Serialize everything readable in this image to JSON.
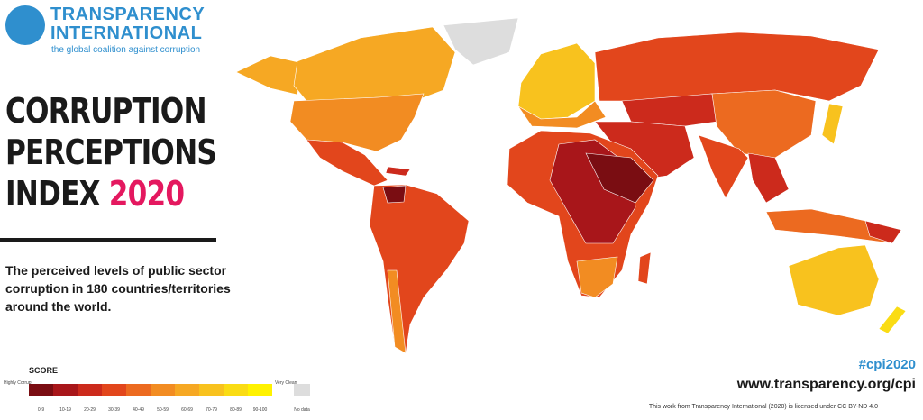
{
  "logo": {
    "line1": "TRANSPARENCY",
    "line2": "INTERNATIONAL",
    "tagline": "the global coalition against corruption"
  },
  "title": {
    "lines": [
      "CORRUPTION",
      "PERCEPTIONS",
      "INDEX"
    ],
    "year": "2020"
  },
  "description": "The perceived levels of public sector corruption in 180 countries/territories around the world.",
  "legend": {
    "title": "SCORE",
    "low_label": "Highly Corrupt",
    "high_label": "Very Clean",
    "no_data": "No data",
    "bins": [
      {
        "label": "0-9",
        "color": "#7a0d12"
      },
      {
        "label": "10-19",
        "color": "#a8161a"
      },
      {
        "label": "20-29",
        "color": "#cc2a1c"
      },
      {
        "label": "30-39",
        "color": "#e2461c"
      },
      {
        "label": "40-49",
        "color": "#ec6a20"
      },
      {
        "label": "50-59",
        "color": "#f28c22"
      },
      {
        "label": "60-69",
        "color": "#f6a823"
      },
      {
        "label": "70-79",
        "color": "#f8c21e"
      },
      {
        "label": "80-89",
        "color": "#fadc14"
      },
      {
        "label": "90-100",
        "color": "#fff200"
      }
    ],
    "no_data_color": "#dddddd"
  },
  "footer": {
    "hashtag": "#cpi2020",
    "url": "www.transparency.org/cpi",
    "license": "This work from Transparency International (2020) is licensed under CC BY-ND 4.0"
  }
}
